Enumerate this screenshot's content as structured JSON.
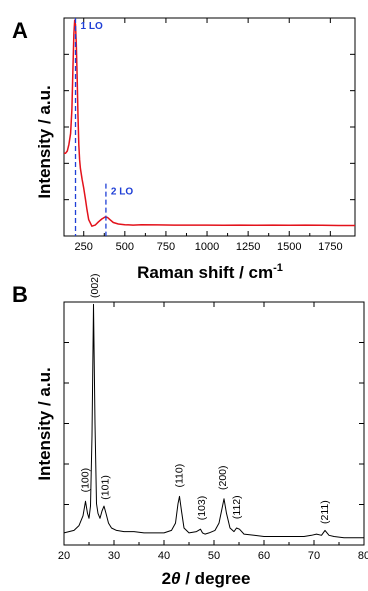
{
  "chart_data": [
    {
      "panel": "A",
      "type": "line",
      "xlabel": "Raman shift / cm",
      "xlabel_sup": "-1",
      "ylabel": "Intensity / a.u.",
      "xlim": [
        130,
        1900
      ],
      "ylim": [
        0,
        1
      ],
      "xticks": [
        250,
        500,
        750,
        1000,
        1250,
        1500,
        1750
      ],
      "yticks_shown": false,
      "series": [
        {
          "color": "#e3121b",
          "x": [
            130,
            140,
            150,
            160,
            170,
            178,
            185,
            190,
            195,
            200,
            205,
            210,
            215,
            220,
            225,
            230,
            240,
            250,
            260,
            270,
            280,
            300,
            320,
            340,
            360,
            380,
            395,
            410,
            430,
            460,
            500,
            550,
            600,
            700,
            800,
            900,
            1000,
            1100,
            1200,
            1300,
            1400,
            1500,
            1600,
            1700,
            1800,
            1900
          ],
          "y": [
            0.38,
            0.38,
            0.39,
            0.42,
            0.47,
            0.58,
            0.78,
            0.93,
            0.99,
            0.97,
            0.88,
            0.72,
            0.55,
            0.42,
            0.35,
            0.31,
            0.26,
            0.22,
            0.17,
            0.12,
            0.075,
            0.045,
            0.05,
            0.065,
            0.078,
            0.087,
            0.085,
            0.075,
            0.062,
            0.055,
            0.052,
            0.05,
            0.052,
            0.051,
            0.05,
            0.05,
            0.05,
            0.049,
            0.05,
            0.049,
            0.05,
            0.049,
            0.05,
            0.049,
            0.048,
            0.048
          ]
        }
      ],
      "annotations": [
        {
          "label": "1 LO",
          "x": 200,
          "color": "#1f3fd6"
        },
        {
          "label": "2 LO",
          "x": 385,
          "color": "#1f3fd6"
        }
      ]
    },
    {
      "panel": "B",
      "type": "line",
      "xlabel_prefix": "2",
      "xlabel_theta": "θ",
      "xlabel_rest": " / degree",
      "ylabel": "Intensity / a.u.",
      "xlim": [
        20,
        80
      ],
      "ylim": [
        0,
        1
      ],
      "xticks": [
        20,
        30,
        40,
        50,
        60,
        70,
        80
      ],
      "xtick_labels": [
        "20",
        "30",
        "40",
        "50",
        "60",
        "70",
        "80"
      ],
      "yticks_shown": false,
      "series": [
        {
          "color": "#000000",
          "x": [
            20,
            21,
            22,
            23,
            23.8,
            24.3,
            24.7,
            25.0,
            25.3,
            25.6,
            25.9,
            26.2,
            26.5,
            26.8,
            27.2,
            27.6,
            28.0,
            28.4,
            28.9,
            29.5,
            30.5,
            32,
            34,
            36,
            38,
            40,
            41.5,
            42.3,
            42.8,
            43.1,
            43.5,
            44.0,
            45,
            46.5,
            47.3,
            47.7,
            48.2,
            49,
            50.2,
            51.0,
            51.6,
            52.0,
            52.5,
            53.2,
            54.0,
            54.5,
            55.1,
            56,
            58,
            60,
            62,
            64,
            66,
            68,
            69.5,
            70.5,
            71.5,
            72.2,
            73,
            74,
            76,
            78,
            80
          ],
          "y": [
            0.05,
            0.055,
            0.06,
            0.08,
            0.12,
            0.18,
            0.13,
            0.11,
            0.16,
            0.45,
            0.99,
            0.5,
            0.17,
            0.13,
            0.11,
            0.14,
            0.16,
            0.13,
            0.09,
            0.07,
            0.06,
            0.055,
            0.055,
            0.05,
            0.05,
            0.05,
            0.06,
            0.09,
            0.17,
            0.2,
            0.14,
            0.07,
            0.05,
            0.055,
            0.065,
            0.05,
            0.045,
            0.05,
            0.06,
            0.09,
            0.15,
            0.19,
            0.13,
            0.07,
            0.055,
            0.07,
            0.065,
            0.045,
            0.04,
            0.035,
            0.035,
            0.035,
            0.035,
            0.035,
            0.04,
            0.045,
            0.04,
            0.06,
            0.04,
            0.035,
            0.03,
            0.03,
            0.03
          ]
        }
      ],
      "peaks": [
        {
          "label": "(100)",
          "x": 24.3,
          "y": 0.2
        },
        {
          "label": "(002)",
          "x": 26.2,
          "y": 1.0
        },
        {
          "label": "(101)",
          "x": 28.3,
          "y": 0.17
        },
        {
          "label": "(110)",
          "x": 43.1,
          "y": 0.22
        },
        {
          "label": "(103)",
          "x": 47.6,
          "y": 0.085
        },
        {
          "label": "(200)",
          "x": 51.8,
          "y": 0.21
        },
        {
          "label": "(112)",
          "x": 54.6,
          "y": 0.09
        },
        {
          "label": "(211)",
          "x": 72.2,
          "y": 0.07
        }
      ]
    }
  ]
}
